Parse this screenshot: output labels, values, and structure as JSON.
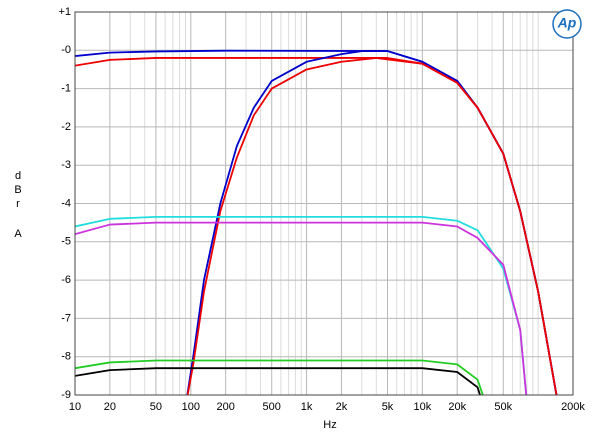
{
  "chart_data": {
    "type": "line",
    "x_label": "Hz",
    "y_label": [
      "d",
      "B",
      "r",
      "A"
    ],
    "annotation": "Ap",
    "log_x": true,
    "grid": true,
    "xlim": [
      10,
      200000
    ],
    "ylim": [
      -9,
      1
    ],
    "xticks": [
      10,
      20,
      50,
      100,
      200,
      500,
      {
        "value": 1000,
        "label": "1k"
      },
      {
        "value": 2000,
        "label": "2k"
      },
      {
        "value": 5000,
        "label": "5k"
      },
      {
        "value": 10000,
        "label": "10k"
      },
      {
        "value": 20000,
        "label": "20k"
      },
      {
        "value": 50000,
        "label": "50k"
      },
      {
        "value": 200000,
        "label": "200k"
      }
    ],
    "minor_xgrid": [
      30,
      40,
      60,
      70,
      80,
      90,
      300,
      400,
      600,
      700,
      800,
      900,
      3000,
      4000,
      6000,
      7000,
      8000,
      9000,
      30000,
      40000,
      60000,
      70000,
      80000,
      90000,
      100000
    ],
    "yticks": [
      {
        "value": 1,
        "label": "+1"
      },
      {
        "value": 0,
        "label": "-0"
      },
      -1,
      -2,
      -3,
      -4,
      -5,
      -6,
      -7,
      -8,
      -9
    ],
    "series": [
      {
        "color": "#0000cc",
        "x": [
          10,
          20,
          50,
          200,
          5000,
          10000,
          20000,
          30000,
          50000,
          70000,
          100000,
          150000
        ],
        "values": [
          -0.15,
          -0.06,
          -0.03,
          -0.01,
          -0.02,
          -0.3,
          -0.8,
          -1.5,
          -2.7,
          -4.2,
          -6.3,
          -9.3
        ]
      },
      {
        "color": "#ee0000",
        "x": [
          10,
          20,
          50,
          5000,
          10000,
          20000,
          30000,
          50000,
          70000,
          100000,
          150000
        ],
        "values": [
          -0.4,
          -0.25,
          -0.2,
          -0.2,
          -0.35,
          -0.85,
          -1.5,
          -2.7,
          -4.2,
          -6.3,
          -9.3
        ]
      },
      {
        "color": "#0000cc",
        "x": [
          90,
          105,
          130,
          180,
          250,
          350,
          500,
          1000,
          2000,
          3000,
          5000,
          10000,
          20000,
          30000,
          50000,
          70000,
          100000,
          150000
        ],
        "values": [
          -9.3,
          -8,
          -6,
          -4,
          -2.5,
          -1.5,
          -0.8,
          -0.3,
          -0.1,
          -0.02,
          -0.02,
          -0.3,
          -0.8,
          -1.5,
          -2.7,
          -4.2,
          -6.3,
          -9.3
        ]
      },
      {
        "color": "#ee0000",
        "x": [
          90,
          105,
          130,
          180,
          250,
          350,
          500,
          1000,
          2000,
          4000,
          10000,
          20000,
          30000,
          50000,
          70000,
          100000,
          150000
        ],
        "values": [
          -9.3,
          -8.2,
          -6.3,
          -4.2,
          -2.8,
          -1.7,
          -1,
          -0.5,
          -0.3,
          -0.2,
          -0.35,
          -0.85,
          -1.5,
          -2.7,
          -4.2,
          -6.3,
          -9.3
        ]
      },
      {
        "color": "#22dddd",
        "x": [
          10,
          20,
          50,
          10000,
          20000,
          30000,
          50000,
          70000,
          80000
        ],
        "values": [
          -4.6,
          -4.4,
          -4.35,
          -4.35,
          -4.45,
          -4.7,
          -5.7,
          -7.3,
          -9.2
        ]
      },
      {
        "color": "#cc33dd",
        "x": [
          10,
          20,
          50,
          10000,
          20000,
          30000,
          50000,
          70000,
          80000
        ],
        "values": [
          -4.8,
          -4.55,
          -4.5,
          -4.5,
          -4.6,
          -4.9,
          -5.6,
          -7.3,
          -9.2
        ]
      },
      {
        "color": "#22cc22",
        "x": [
          10,
          20,
          50,
          10000,
          20000,
          30000,
          35000
        ],
        "values": [
          -8.3,
          -8.15,
          -8.1,
          -8.1,
          -8.2,
          -8.6,
          -9.2
        ]
      },
      {
        "color": "#000000",
        "x": [
          10,
          20,
          50,
          10000,
          20000,
          30000,
          33000
        ],
        "values": [
          -8.5,
          -8.35,
          -8.3,
          -8.3,
          -8.4,
          -8.8,
          -9.2
        ]
      }
    ]
  }
}
